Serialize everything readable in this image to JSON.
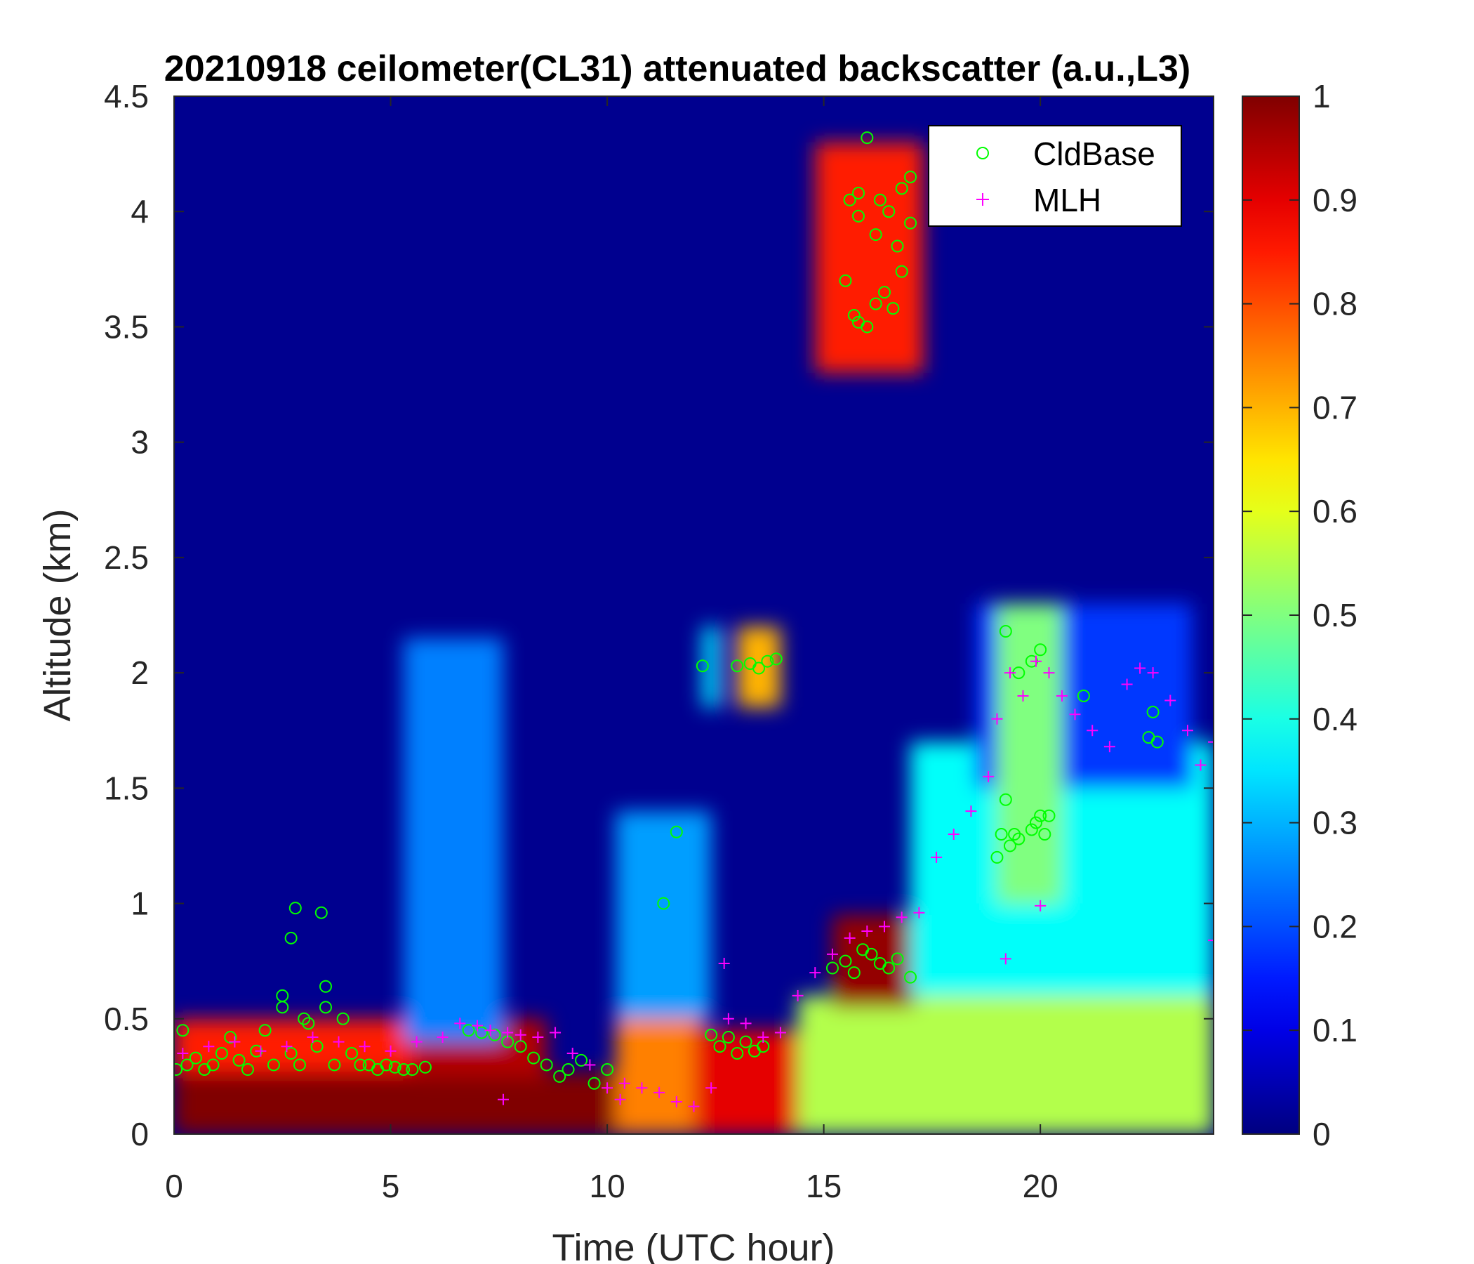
{
  "chart_data": {
    "type": "heatmap",
    "title": "20210918 ceilometer(CL31) attenuated backscatter (a.u.,L3)",
    "xlabel": "Time (UTC hour)",
    "ylabel": "Altitude (km)",
    "xlim": [
      0,
      24
    ],
    "ylim": [
      0,
      4.5
    ],
    "x_ticks": [
      "0",
      "5",
      "10",
      "15",
      "20"
    ],
    "y_ticks": [
      "0",
      "0.5",
      "1",
      "1.5",
      "2",
      "2.5",
      "3",
      "3.5",
      "4",
      "4.5"
    ],
    "colorbar": {
      "colormap": "jet",
      "clim": [
        0,
        1
      ],
      "ticks": [
        "0",
        "0.1",
        "0.2",
        "0.3",
        "0.4",
        "0.5",
        "0.6",
        "0.7",
        "0.8",
        "0.9",
        "1"
      ]
    },
    "legend": {
      "position": "top-right",
      "entries": [
        {
          "label": "CldBase",
          "marker": "circle",
          "color": "#00ff00"
        },
        {
          "label": "MLH",
          "marker": "plus",
          "color": "#ff00ff"
        }
      ]
    },
    "backscatter_features": [
      {
        "t0": 0,
        "t1": 10.2,
        "z0": 0,
        "z1": 0.27,
        "value": 1.0
      },
      {
        "t0": 0,
        "t1": 5.5,
        "z0": 0.27,
        "z1": 0.5,
        "value": 0.85
      },
      {
        "t0": 5.5,
        "t1": 8.6,
        "z0": 0.25,
        "z1": 0.5,
        "value": 0.95
      },
      {
        "t0": 5.3,
        "t1": 7.6,
        "z0": 0.4,
        "z1": 2.15,
        "value": 0.25
      },
      {
        "t0": 10.2,
        "t1": 12.2,
        "z0": 0,
        "z1": 0.55,
        "value": 0.75
      },
      {
        "t0": 10.2,
        "t1": 12.4,
        "z0": 0.5,
        "z1": 1.4,
        "value": 0.28
      },
      {
        "t0": 12.0,
        "t1": 14.4,
        "z0": 0,
        "z1": 0.45,
        "value": 0.9
      },
      {
        "t0": 14.4,
        "t1": 24,
        "z0": 0,
        "z1": 0.6,
        "value": 0.55
      },
      {
        "t0": 15.2,
        "t1": 17.1,
        "z0": 0.55,
        "z1": 0.95,
        "value": 0.98
      },
      {
        "t0": 17.0,
        "t1": 24,
        "z0": 0.6,
        "z1": 1.7,
        "value": 0.38
      },
      {
        "t0": 18.5,
        "t1": 23.5,
        "z0": 1.5,
        "z1": 2.3,
        "value": 0.18
      },
      {
        "t0": 19.0,
        "t1": 20.5,
        "z0": 1.0,
        "z1": 2.3,
        "value": 0.5
      },
      {
        "t0": 12.2,
        "t1": 12.6,
        "z0": 1.85,
        "z1": 2.2,
        "value": 0.35
      },
      {
        "t0": 13.0,
        "t1": 14.0,
        "z0": 1.85,
        "z1": 2.2,
        "value": 0.7
      },
      {
        "t0": 14.8,
        "t1": 17.3,
        "z0": 3.3,
        "z1": 4.3,
        "value": 0.85
      }
    ],
    "series": [
      {
        "name": "CldBase",
        "x": [
          0.05,
          0.2,
          0.3,
          0.5,
          0.7,
          0.9,
          1.1,
          1.3,
          1.5,
          1.7,
          1.9,
          2.1,
          2.3,
          2.5,
          2.7,
          2.9,
          3.1,
          3.3,
          3.5,
          3.7,
          3.9,
          4.1,
          4.3,
          4.5,
          4.7,
          4.9,
          5.1,
          5.3,
          5.5,
          5.8,
          6.8,
          7.1,
          7.4,
          7.7,
          8.0,
          8.3,
          8.6,
          8.9,
          9.1,
          9.4,
          9.7,
          10.0,
          11.3,
          11.6,
          12.2,
          12.4,
          12.6,
          12.8,
          13.0,
          13.2,
          13.4,
          13.6,
          13.0,
          13.3,
          13.5,
          13.7,
          13.9,
          15.2,
          15.5,
          15.7,
          15.9,
          16.1,
          16.3,
          16.5,
          16.7,
          17.0,
          15.7,
          15.8,
          16.0,
          16.2,
          16.4,
          16.6,
          16.8,
          17.0,
          15.6,
          15.8,
          16.0,
          16.3,
          16.5,
          16.8,
          15.5,
          15.8,
          16.2,
          16.7,
          17.0,
          2.7,
          2.8,
          3.4,
          3.5,
          2.5,
          3.0,
          19.0,
          19.1,
          19.2,
          19.3,
          19.4,
          19.5,
          19.8,
          19.9,
          20.0,
          20.1,
          20.2,
          19.2,
          19.5,
          19.8,
          20.0,
          22.5,
          22.6,
          22.7,
          21.0
        ],
        "y": [
          0.28,
          0.45,
          0.3,
          0.33,
          0.28,
          0.3,
          0.35,
          0.42,
          0.32,
          0.28,
          0.36,
          0.45,
          0.3,
          0.55,
          0.35,
          0.3,
          0.48,
          0.38,
          0.55,
          0.3,
          0.5,
          0.35,
          0.3,
          0.3,
          0.28,
          0.3,
          0.29,
          0.28,
          0.28,
          0.29,
          0.45,
          0.44,
          0.43,
          0.4,
          0.38,
          0.33,
          0.3,
          0.25,
          0.28,
          0.32,
          0.22,
          0.28,
          1.0,
          1.31,
          2.03,
          0.43,
          0.38,
          0.42,
          0.35,
          0.4,
          0.36,
          0.38,
          2.03,
          2.04,
          2.02,
          2.05,
          2.06,
          0.72,
          0.75,
          0.7,
          0.8,
          0.78,
          0.74,
          0.72,
          0.76,
          0.68,
          3.55,
          3.52,
          3.5,
          3.6,
          3.65,
          3.58,
          3.74,
          3.95,
          4.05,
          4.08,
          4.32,
          4.05,
          4.0,
          4.1,
          3.7,
          3.98,
          3.9,
          3.85,
          4.15,
          0.85,
          0.98,
          0.96,
          0.64,
          0.6,
          0.5,
          1.2,
          1.3,
          1.45,
          1.25,
          1.3,
          1.28,
          1.32,
          1.35,
          1.38,
          1.3,
          1.38,
          2.18,
          2.0,
          2.05,
          2.1,
          1.72,
          1.83,
          1.7,
          1.9
        ],
        "color": "#00ff00"
      },
      {
        "name": "MLH",
        "x": [
          0.2,
          0.8,
          1.4,
          2.0,
          2.6,
          3.2,
          3.8,
          4.4,
          5.0,
          5.6,
          6.2,
          6.6,
          7.0,
          7.3,
          7.7,
          8.0,
          8.4,
          8.8,
          9.2,
          9.6,
          10.0,
          10.4,
          10.8,
          11.2,
          11.6,
          12.0,
          12.4,
          12.8,
          13.2,
          13.6,
          14.0,
          14.4,
          14.8,
          15.2,
          15.6,
          16.0,
          16.4,
          16.8,
          17.2,
          17.6,
          18.0,
          18.4,
          18.8,
          19.0,
          19.3,
          19.6,
          19.9,
          20.2,
          20.5,
          20.8,
          21.2,
          21.6,
          22.0,
          22.3,
          22.6,
          23.0,
          23.4,
          23.7,
          24.0,
          7.6,
          10.3,
          12.7,
          19.2,
          20.0,
          24.0
        ],
        "y": [
          0.35,
          0.38,
          0.4,
          0.36,
          0.38,
          0.42,
          0.4,
          0.38,
          0.36,
          0.4,
          0.42,
          0.48,
          0.47,
          0.45,
          0.44,
          0.43,
          0.42,
          0.44,
          0.35,
          0.3,
          0.2,
          0.22,
          0.2,
          0.18,
          0.14,
          0.12,
          0.2,
          0.5,
          0.48,
          0.42,
          0.44,
          0.6,
          0.7,
          0.78,
          0.85,
          0.88,
          0.9,
          0.94,
          0.96,
          1.2,
          1.3,
          1.4,
          1.55,
          1.8,
          2.0,
          1.9,
          2.05,
          2.0,
          1.9,
          1.82,
          1.75,
          1.68,
          1.95,
          2.02,
          2.0,
          1.88,
          1.75,
          1.6,
          1.7,
          0.15,
          0.15,
          0.74,
          0.76,
          0.99,
          0.84
        ],
        "color": "#ff00ff"
      }
    ]
  }
}
